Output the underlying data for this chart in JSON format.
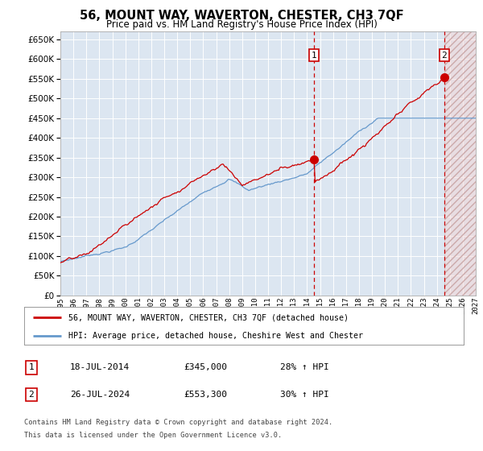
{
  "title": "56, MOUNT WAY, WAVERTON, CHESTER, CH3 7QF",
  "subtitle": "Price paid vs. HM Land Registry's House Price Index (HPI)",
  "yticks": [
    0,
    50000,
    100000,
    150000,
    200000,
    250000,
    300000,
    350000,
    400000,
    450000,
    500000,
    550000,
    600000,
    650000
  ],
  "ylim": [
    0,
    670000
  ],
  "xlim_start": 1995,
  "xlim_end": 2027,
  "background_color": "#dce6f1",
  "grid_color": "#ffffff",
  "hpi_line_color": "#6699cc",
  "price_line_color": "#cc0000",
  "sale1_x": 2014.55,
  "sale1_price": 345000,
  "sale2_x": 2024.57,
  "sale2_price": 553300,
  "legend_line1": "56, MOUNT WAY, WAVERTON, CHESTER, CH3 7QF (detached house)",
  "legend_line2": "HPI: Average price, detached house, Cheshire West and Chester",
  "table_row1": [
    "1",
    "18-JUL-2014",
    "£345,000",
    "28% ↑ HPI"
  ],
  "table_row2": [
    "2",
    "26-JUL-2024",
    "£553,300",
    "30% ↑ HPI"
  ],
  "footnote1": "Contains HM Land Registry data © Crown copyright and database right 2024.",
  "footnote2": "This data is licensed under the Open Government Licence v3.0.",
  "hatch_color": "#cc0000",
  "dashed_color": "#cc0000"
}
